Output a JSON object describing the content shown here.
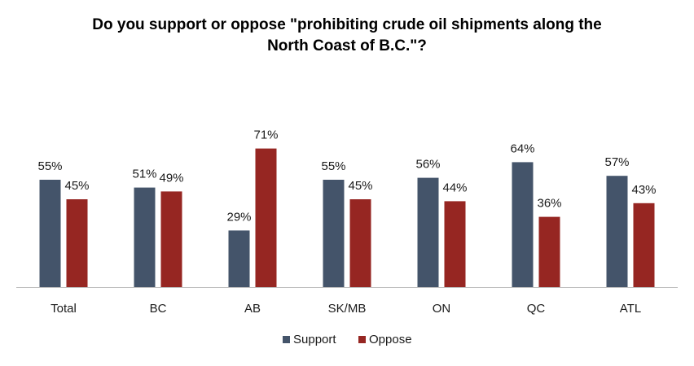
{
  "chart_data": {
    "type": "bar",
    "title_lines": [
      "Do you support or oppose \"prohibiting crude oil shipments along the",
      "North Coast of B.C.\"?"
    ],
    "categories": [
      "Total",
      "BC",
      "AB",
      "SK/MB",
      "ON",
      "QC",
      "ATL"
    ],
    "series": [
      {
        "name": "Support",
        "color": "#44546A",
        "values": [
          55,
          51,
          29,
          55,
          56,
          64,
          57
        ],
        "labels": [
          "55%",
          "51%",
          "29%",
          "55%",
          "56%",
          "64%",
          "57%"
        ]
      },
      {
        "name": "Oppose",
        "color": "#962622",
        "values": [
          45,
          49,
          71,
          45,
          44,
          36,
          43
        ],
        "labels": [
          "45%",
          "49%",
          "71%",
          "45%",
          "44%",
          "36%",
          "43%"
        ]
      }
    ],
    "ylim": [
      0,
      100
    ],
    "grid": false,
    "legend_position": "bottom"
  }
}
